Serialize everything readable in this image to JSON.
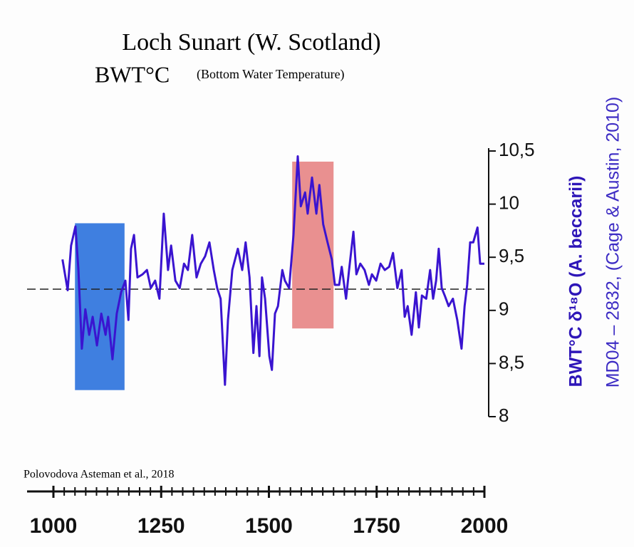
{
  "chart_data": {
    "type": "line",
    "title": "Loch Sunart (W. Scotland)",
    "subtitle": "BWT°C",
    "subtitle_note": "(Bottom Water Temperature)",
    "ylabel": "BWT°C δ¹⁸O (A. beccarii)",
    "ylabel2": "MD04 – 2832, (Cage & Austin, 2010)",
    "source": "Polovodova Asteman et al., 2018",
    "color": "#3a14d0",
    "x": [
      1021,
      1033,
      1041,
      1051,
      1058,
      1066,
      1074,
      1083,
      1091,
      1101,
      1111,
      1121,
      1127,
      1137,
      1147,
      1157,
      1167,
      1174,
      1180,
      1187,
      1195,
      1207,
      1217,
      1226,
      1236,
      1246,
      1256,
      1266,
      1273,
      1283,
      1293,
      1303,
      1312,
      1322,
      1332,
      1342,
      1352,
      1362,
      1372,
      1380,
      1388,
      1398,
      1405,
      1415,
      1428,
      1438,
      1446,
      1455,
      1464,
      1471,
      1478,
      1484,
      1491,
      1501,
      1507,
      1514,
      1521,
      1531,
      1537,
      1547,
      1557,
      1567,
      1574,
      1584,
      1590,
      1600,
      1610,
      1617,
      1626,
      1636,
      1646,
      1653,
      1663,
      1669,
      1679,
      1686,
      1696,
      1703,
      1712,
      1722,
      1732,
      1739,
      1749,
      1759,
      1769,
      1779,
      1788,
      1798,
      1808,
      1815,
      1822,
      1831,
      1841,
      1848,
      1855,
      1865,
      1874,
      1881,
      1888,
      1894,
      1901,
      1908,
      1917,
      1927,
      1937,
      1947,
      1954,
      1960,
      1967,
      1974,
      1984,
      1990,
      2000
    ],
    "values": [
      9.48,
      9.19,
      9.61,
      9.79,
      9.38,
      8.64,
      9.01,
      8.77,
      8.94,
      8.67,
      8.97,
      8.77,
      8.94,
      8.54,
      8.97,
      9.17,
      9.28,
      8.91,
      9.58,
      9.71,
      9.31,
      9.34,
      9.38,
      9.21,
      9.28,
      9.11,
      9.91,
      9.38,
      9.61,
      9.28,
      9.21,
      9.44,
      9.38,
      9.71,
      9.31,
      9.44,
      9.51,
      9.64,
      9.38,
      9.21,
      9.11,
      8.3,
      8.91,
      9.38,
      9.58,
      9.38,
      9.64,
      9.31,
      8.6,
      9.04,
      8.57,
      9.31,
      9.11,
      8.57,
      8.44,
      8.97,
      9.04,
      9.38,
      9.28,
      9.21,
      9.71,
      10.45,
      9.98,
      10.11,
      9.91,
      10.25,
      9.91,
      10.18,
      9.81,
      9.64,
      9.48,
      9.24,
      9.24,
      9.41,
      9.11,
      9.38,
      9.74,
      9.34,
      9.44,
      9.38,
      9.24,
      9.34,
      9.28,
      9.44,
      9.38,
      9.41,
      9.54,
      9.21,
      9.38,
      8.94,
      9.04,
      8.77,
      9.17,
      8.84,
      9.14,
      9.11,
      9.38,
      9.11,
      9.28,
      9.58,
      9.21,
      9.14,
      9.04,
      9.11,
      8.91,
      8.64,
      9.04,
      9.24,
      9.64,
      9.64,
      9.78,
      9.44,
      9.44
    ],
    "xlim": [
      1000,
      2000
    ],
    "xticks": [
      1000,
      1250,
      1500,
      1750,
      2000
    ],
    "xminorticks": [
      1000,
      1025,
      1050,
      1075,
      1100,
      1125,
      1150,
      1175,
      1200,
      1225,
      1250,
      1275,
      1300,
      1325,
      1350,
      1375,
      1400,
      1425,
      1450,
      1475,
      1500,
      1525,
      1550,
      1575,
      1600,
      1625,
      1650,
      1675,
      1700,
      1725,
      1750,
      1775,
      1800,
      1825,
      1850,
      1875,
      1900,
      1925,
      1950,
      1975,
      2000
    ],
    "ylim": [
      8,
      10.5
    ],
    "yticks": [
      {
        "value": 10.5,
        "label": "10,5"
      },
      10,
      {
        "value": 9.5,
        "label": "9,5"
      },
      9,
      {
        "value": 8.5,
        "label": "8,5"
      },
      8
    ],
    "reference_line": 9.2,
    "shaded_regions": [
      {
        "x": [
          1050,
          1165
        ],
        "y": [
          8.25,
          9.82
        ],
        "color": "#3f7fe0"
      },
      {
        "x": [
          1554,
          1650
        ],
        "y": [
          8.83,
          10.4
        ],
        "color": "#e99090"
      }
    ]
  }
}
